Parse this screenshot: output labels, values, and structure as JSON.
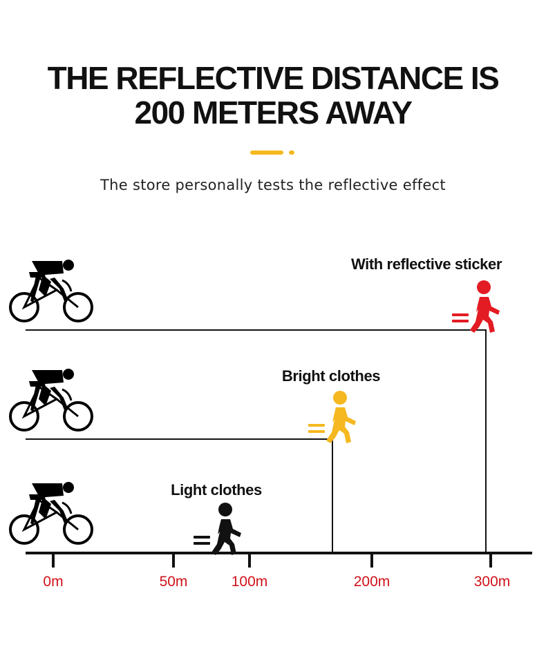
{
  "header": {
    "title_line1": "THE REFLECTIVE DISTANCE IS",
    "title_line2": "200 METERS AWAY",
    "subtitle": "The store personally tests the reflective effect",
    "accent_color": "#f5b820"
  },
  "scene": {
    "tick_color": "#d0121b",
    "ticks": [
      "0m",
      "50m",
      "100m",
      "200m",
      "300m"
    ],
    "rows": [
      {
        "label": "With reflective sticker",
        "pedestrian_color": "#e31b23"
      },
      {
        "label": "Bright clothes",
        "pedestrian_color": "#f5b820"
      },
      {
        "label": "Light clothes",
        "pedestrian_color": "#111111"
      }
    ],
    "icons": {
      "cyclist": "cyclist-icon",
      "pedestrian": "pedestrian-icon"
    }
  }
}
